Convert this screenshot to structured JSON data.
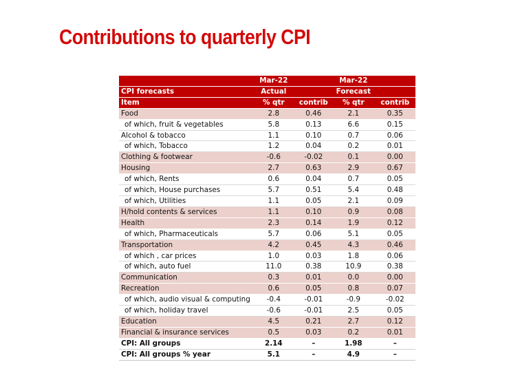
{
  "title": "Contributions to quarterly CPI",
  "table": {
    "header": [
      [
        "",
        "Mar-22",
        "",
        "Mar-22",
        ""
      ],
      [
        "CPI forecasts",
        "Actual",
        "",
        "Forecast",
        ""
      ],
      [
        "Item",
        "% qtr",
        "contrib",
        "% qtr",
        "contrib"
      ]
    ],
    "rows": [
      [
        "Food",
        "2.8",
        "0.46",
        "2.1",
        "0.35"
      ],
      [
        "of which, fruit & vegetables",
        "5.8",
        "0.13",
        "6.6",
        "0.15"
      ],
      [
        "Alcohol & tobacco",
        "1.1",
        "0.10",
        "0.7",
        "0.06"
      ],
      [
        "of which, Tobacco",
        "1.2",
        "0.04",
        "0.2",
        "0.01"
      ],
      [
        "Clothing & footwear",
        "-0.6",
        "-0.02",
        "0.1",
        "0.00"
      ],
      [
        "Housing",
        "2.7",
        "0.63",
        "2.9",
        "0.67"
      ],
      [
        "of which, Rents",
        "0.6",
        "0.04",
        "0.7",
        "0.05"
      ],
      [
        "of which, House purchases",
        "5.7",
        "0.51",
        "5.4",
        "0.48"
      ],
      [
        "of which, Utilities",
        "1.1",
        "0.05",
        "2.1",
        "0.09"
      ],
      [
        "H/hold contents & services",
        "1.1",
        "0.10",
        "0.9",
        "0.08"
      ],
      [
        "Health",
        "2.3",
        "0.14",
        "1.9",
        "0.12"
      ],
      [
        "of which, Pharmaceuticals",
        "5.7",
        "0.06",
        "5.1",
        "0.05"
      ],
      [
        "Transportation",
        "4.2",
        "0.45",
        "4.3",
        "0.46"
      ],
      [
        "of which , car prices",
        "1.0",
        "0.03",
        "1.8",
        "0.06"
      ],
      [
        "of which, auto fuel",
        "11.0",
        "0.38",
        "10.9",
        "0.38"
      ],
      [
        "Communication",
        "0.3",
        "0.01",
        "0.0",
        "0.00"
      ],
      [
        "Recreation",
        "0.6",
        "0.05",
        "0.8",
        "0.07"
      ],
      [
        "of which, audio visual & computing",
        "-0.4",
        "-0.01",
        "-0.9",
        "-0.02"
      ],
      [
        "of which, holiday travel",
        "-0.6",
        "-0.01",
        "2.5",
        "0.05"
      ],
      [
        "Education",
        "4.5",
        "0.21",
        "2.7",
        "0.12"
      ],
      [
        "Financial & insurance services",
        "0.5",
        "0.03",
        "0.2",
        "0.01"
      ],
      [
        "CPI: All groups",
        "2.14",
        "–",
        "1.98",
        "–"
      ],
      [
        "CPI: All groups % year",
        "5.1",
        "–",
        "4.9",
        "–"
      ]
    ]
  }
}
